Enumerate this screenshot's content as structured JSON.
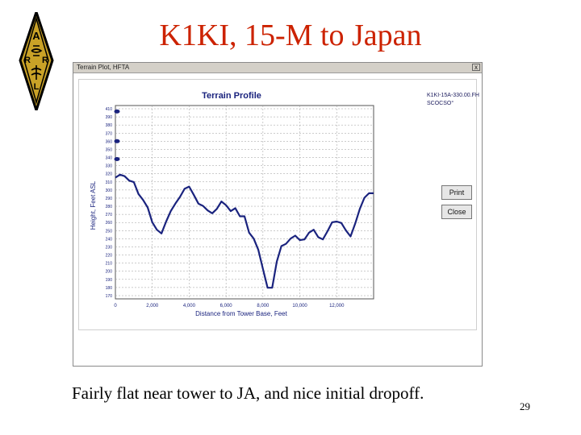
{
  "slide": {
    "title": "K1KI, 15-M to Japan",
    "caption": "Fairly flat near tower to JA, and nice initial dropoff.",
    "page_number": "29",
    "title_color": "#cc2200"
  },
  "logo": {
    "letters": [
      "A",
      "R",
      "R",
      "L"
    ],
    "color": "#c9a227"
  },
  "window": {
    "title": "Terrain Plot, HFTA",
    "close_label": "x",
    "info_lines": [
      "K1KI-15A-330.00.FH",
      "SCOCSO°"
    ],
    "buttons": {
      "print": "Print",
      "close": "Close"
    }
  },
  "chart_data": {
    "type": "line",
    "title": "Terrain Profile",
    "xlabel": "Distance from Tower Base, Feet",
    "ylabel": "Height, Feet ASL",
    "xlim": [
      0,
      14000
    ],
    "ylim": [
      160,
      420
    ],
    "x_ticks": [
      "0",
      "2,000",
      "4,000",
      "6,000",
      "8,000",
      "10,000",
      "12,000"
    ],
    "y_ticks": [
      "410",
      "390",
      "380",
      "370",
      "360",
      "350",
      "340",
      "330",
      "320",
      "310",
      "300",
      "290",
      "280",
      "270",
      "260",
      "250",
      "240",
      "230",
      "220",
      "210",
      "200",
      "190",
      "180",
      "170"
    ],
    "tower_markers": [
      412,
      372,
      348
    ],
    "line_color": "#1a237e",
    "series": [
      {
        "x": [
          0,
          250,
          500,
          750,
          1000,
          1250,
          1500,
          1750,
          2000,
          2250,
          2500,
          2750,
          3000,
          3250,
          3500,
          3750,
          4000,
          4250,
          4500,
          4750,
          5000,
          5250,
          5500,
          5750,
          6000,
          6250,
          6500,
          6750,
          7000,
          7250,
          7500,
          7750,
          8000,
          8250,
          8500,
          8750,
          9000,
          9250,
          9500,
          9750,
          10000,
          10250,
          10500,
          10750,
          11000,
          11250,
          11500,
          11750,
          12000,
          12250,
          12500,
          12750,
          13000,
          13250,
          13500,
          13750,
          14000
        ],
        "y": [
          323,
          327,
          325,
          319,
          317,
          301,
          293,
          283,
          263,
          253,
          248,
          264,
          278,
          288,
          297,
          308,
          311,
          300,
          288,
          285,
          279,
          275,
          281,
          291,
          286,
          278,
          282,
          271,
          271,
          249,
          241,
          226,
          200,
          175,
          175,
          210,
          231,
          234,
          241,
          245,
          239,
          240,
          249,
          253,
          243,
          240,
          251,
          263,
          264,
          262,
          252,
          244,
          261,
          281,
          296,
          302,
          302
        ]
      }
    ],
    "grid": true
  }
}
